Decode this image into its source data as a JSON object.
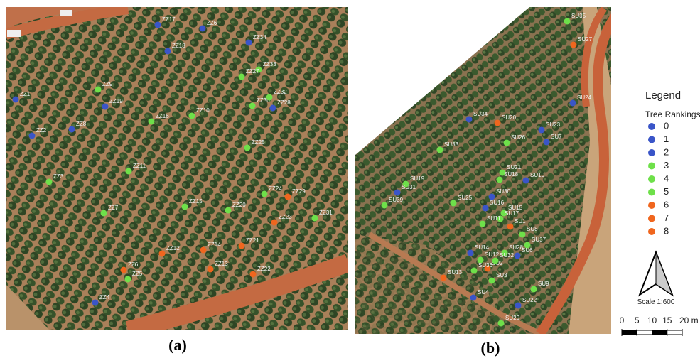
{
  "panels": [
    {
      "caption": "(a)",
      "points": [
        {
          "label": "ZZ17",
          "rank": 1
        },
        {
          "label": "ZZ6",
          "rank": 1
        },
        {
          "label": "ZZ34",
          "rank": 2
        },
        {
          "label": "ZZ18",
          "rank": 1
        },
        {
          "label": "ZZ33",
          "rank": 4
        },
        {
          "label": "ZZ27",
          "rank": 4
        },
        {
          "label": "ZZ1",
          "rank": 2
        },
        {
          "label": "ZZ9",
          "rank": 4
        },
        {
          "label": "ZZ19",
          "rank": 1
        },
        {
          "label": "ZZ30",
          "rank": 4
        },
        {
          "label": "ZZ32",
          "rank": 4
        },
        {
          "label": "ZZ28",
          "rank": 1
        },
        {
          "label": "ZZ16",
          "rank": 4
        },
        {
          "label": "ZZ10",
          "rank": 4
        },
        {
          "label": "ZZ8",
          "rank": 1
        },
        {
          "label": "ZZ2",
          "rank": 1
        },
        {
          "label": "ZZ25",
          "rank": 4
        },
        {
          "label": "ZZ11",
          "rank": 4
        },
        {
          "label": "ZZ3",
          "rank": 4
        },
        {
          "label": "ZZ24",
          "rank": 4
        },
        {
          "label": "ZZ29",
          "rank": 7
        },
        {
          "label": "ZZ15",
          "rank": 4
        },
        {
          "label": "ZZ20",
          "rank": 4
        },
        {
          "label": "ZZ7",
          "rank": 4
        },
        {
          "label": "ZZ23",
          "rank": 7
        },
        {
          "label": "ZZ31",
          "rank": 4
        },
        {
          "label": "ZZ21",
          "rank": 7
        },
        {
          "label": "ZZ14",
          "rank": 7
        },
        {
          "label": "ZZ12",
          "rank": 7
        },
        {
          "label": "ZZ13",
          "rank": 7
        },
        {
          "label": "ZZ22",
          "rank": 7
        },
        {
          "label": "ZZ6",
          "rank": 7
        },
        {
          "label": "ZZ5",
          "rank": 4
        },
        {
          "label": "ZZ4",
          "rank": 1
        }
      ]
    },
    {
      "caption": "(b)",
      "points": [
        {
          "label": "SU35",
          "rank": 4
        },
        {
          "label": "SU27",
          "rank": 7
        },
        {
          "label": "SU24",
          "rank": 1
        },
        {
          "label": "SU34",
          "rank": 1
        },
        {
          "label": "SU20",
          "rank": 7
        },
        {
          "label": "SU23",
          "rank": 1
        },
        {
          "label": "SU7",
          "rank": 1
        },
        {
          "label": "SU26",
          "rank": 4
        },
        {
          "label": "SU33",
          "rank": 4
        },
        {
          "label": "SU21",
          "rank": 4
        },
        {
          "label": "SU18",
          "rank": 4
        },
        {
          "label": "SU10",
          "rank": 1
        },
        {
          "label": "SU19",
          "rank": 4
        },
        {
          "label": "SU31",
          "rank": 1
        },
        {
          "label": "SU39",
          "rank": 4
        },
        {
          "label": "SU25",
          "rank": 4
        },
        {
          "label": "SU30",
          "rank": 1
        },
        {
          "label": "SU16",
          "rank": 1
        },
        {
          "label": "SU15",
          "rank": 4
        },
        {
          "label": "SU17",
          "rank": 4
        },
        {
          "label": "SU11",
          "rank": 4
        },
        {
          "label": "SU1",
          "rank": 7
        },
        {
          "label": "SU8",
          "rank": 4
        },
        {
          "label": "SU37",
          "rank": 4
        },
        {
          "label": "SU14",
          "rank": 1
        },
        {
          "label": "SU28",
          "rank": 4
        },
        {
          "label": "SU6",
          "rank": 1
        },
        {
          "label": "SU12",
          "rank": 4
        },
        {
          "label": "SU2",
          "rank": 7
        },
        {
          "label": "SU32",
          "rank": 4
        },
        {
          "label": "SU13",
          "rank": 7
        },
        {
          "label": "SU36",
          "rank": 4
        },
        {
          "label": "SU3",
          "rank": 4
        },
        {
          "label": "SU9",
          "rank": 4
        },
        {
          "label": "SU4",
          "rank": 1
        },
        {
          "label": "SU22",
          "rank": 1
        },
        {
          "label": "SU29",
          "rank": 4
        }
      ]
    }
  ],
  "legend": {
    "title": "Legend",
    "subtitle": "Tree Rankings",
    "ranks": [
      0,
      1,
      2,
      3,
      4,
      5,
      6,
      7,
      8
    ],
    "colors": [
      "#3a55c8",
      "#3a55c8",
      "#3a55c8",
      "#6ee04a",
      "#6ee04a",
      "#6ee04a",
      "#f0661e",
      "#f0661e",
      "#f0661e"
    ]
  },
  "north_scale": "Scale 1:600",
  "scale_bar": {
    "ticks": [
      0,
      5,
      10,
      15,
      {
        "value": 20,
        "label": "20 m"
      }
    ]
  }
}
